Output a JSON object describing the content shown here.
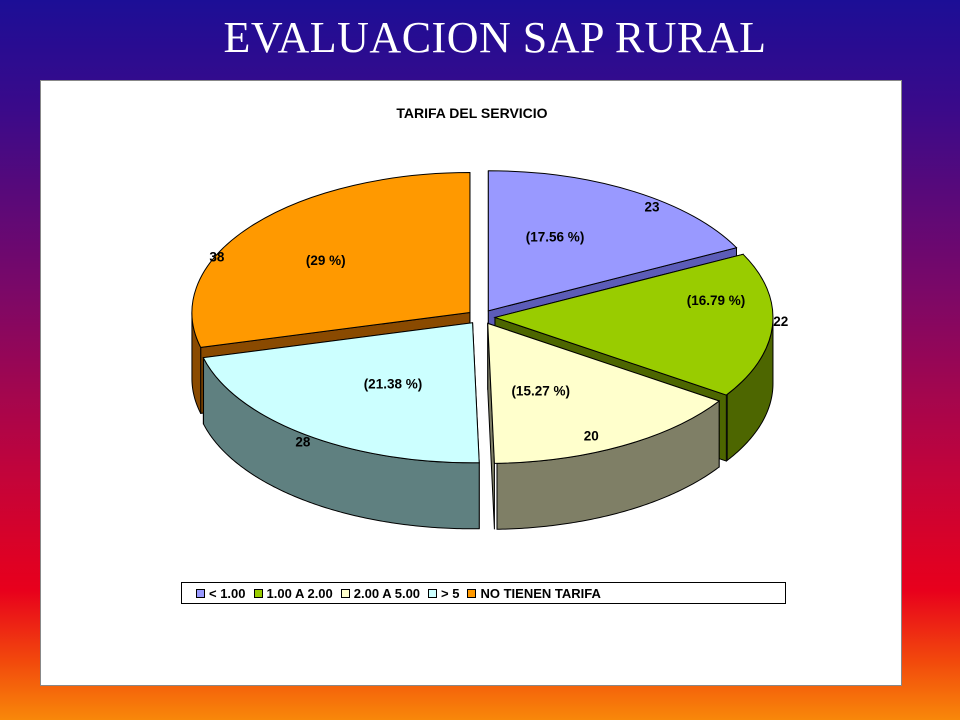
{
  "slide": {
    "title": "EVALUACION SAP  RURAL"
  },
  "chart_data": {
    "type": "pie",
    "title": "TARIFA DEL SERVICIO",
    "categories": [
      "< 1.00",
      "1.00 A 2.00",
      "2.00 A 5.00",
      "> 5",
      "NO TIENEN TARIFA"
    ],
    "values": [
      23,
      22,
      20,
      28,
      38
    ],
    "percent_labels": [
      "(17.56 %)",
      "(16.79 %)",
      "(15.27 %)",
      "(21.38 %)",
      "(29 %)"
    ],
    "colors": [
      "#9999ff",
      "#99cc00",
      "#ffffcc",
      "#ccffff",
      "#ff9900"
    ],
    "side_colors": [
      "#5c5cb8",
      "#4d6600",
      "#7f7f66",
      "#5f8080",
      "#8a4a00"
    ],
    "legend_placement": "bottom",
    "exploded": true,
    "three_d": true
  }
}
